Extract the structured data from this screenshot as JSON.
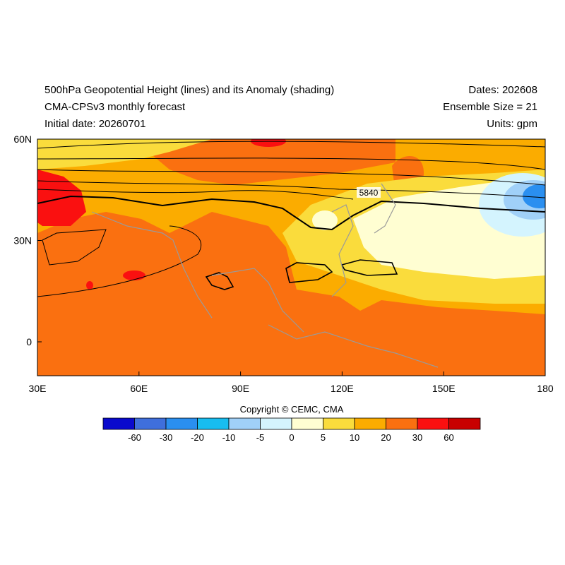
{
  "header": {
    "title": "500hPa Geopotential Height (lines) and its Anomaly (shading)",
    "model": "CMA-CPSv3 monthly forecast",
    "initial_date": "Initial date: 20260701",
    "dates": "Dates: 202608",
    "ensemble": "Ensemble Size = 21",
    "units": "Units: gpm"
  },
  "map": {
    "lat_labels": [
      "60N",
      "30N",
      "0"
    ],
    "lon_labels": [
      "30E",
      "60E",
      "90E",
      "120E",
      "150E",
      "180"
    ],
    "contour_label": "5840"
  },
  "footer": {
    "copyright": "Copyright © CEMC, CMA"
  },
  "colorbar": {
    "labels": [
      "-60",
      "-30",
      "-20",
      "-10",
      "-5",
      "0",
      "5",
      "10",
      "20",
      "30",
      "60"
    ]
  }
}
